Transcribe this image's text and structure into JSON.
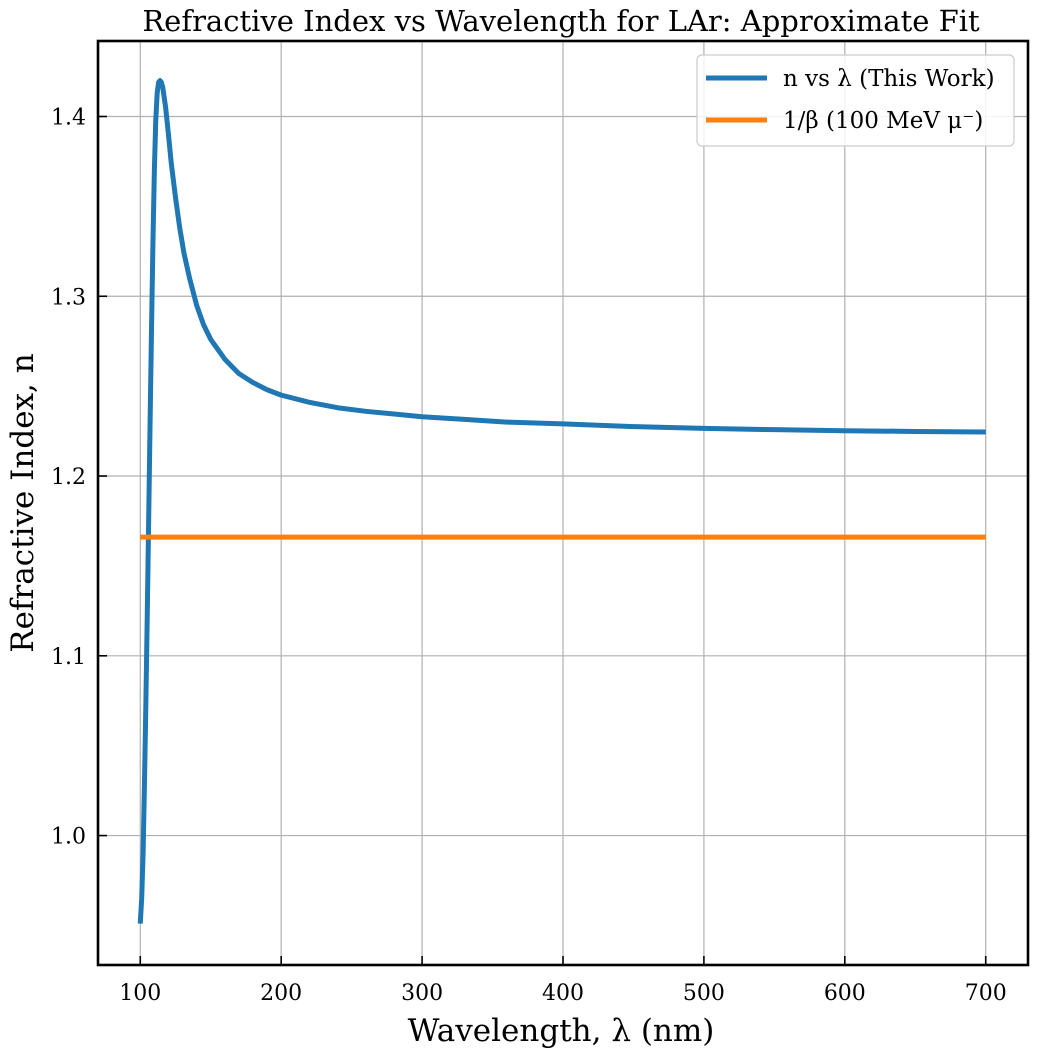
{
  "chart_data": {
    "type": "line",
    "title": "Refractive Index vs Wavelength for LAr: Approximate Fit",
    "xlabel": "Wavelength, λ (nm)",
    "ylabel": "Refractive Index, n",
    "xlim": [
      70,
      730
    ],
    "ylim": [
      0.928,
      1.442
    ],
    "xticks": [
      100,
      200,
      300,
      400,
      500,
      600,
      700
    ],
    "xtick_labels": [
      "100",
      "200",
      "300",
      "400",
      "500",
      "600",
      "700"
    ],
    "yticks": [
      1.0,
      1.1,
      1.2,
      1.3,
      1.4
    ],
    "ytick_labels": [
      "1.0",
      "1.1",
      "1.2",
      "1.3",
      "1.4"
    ],
    "grid": true,
    "legend_position": "top-right",
    "series": [
      {
        "name": "n vs λ (This Work)",
        "color": "#1f77b4",
        "x": [
          100,
          101,
          102,
          103,
          104,
          105,
          106,
          107,
          108,
          109,
          110,
          111,
          112,
          113,
          114,
          115,
          116,
          118,
          120,
          122,
          125,
          128,
          131,
          135,
          140,
          145,
          150,
          160,
          170,
          180,
          190,
          200,
          220,
          240,
          260,
          280,
          300,
          330,
          360,
          400,
          450,
          500,
          550,
          600,
          650,
          700
        ],
        "y": [
          0.951,
          0.965,
          0.99,
          1.03,
          1.075,
          1.125,
          1.178,
          1.232,
          1.283,
          1.33,
          1.37,
          1.398,
          1.413,
          1.419,
          1.42,
          1.419,
          1.416,
          1.405,
          1.39,
          1.374,
          1.355,
          1.338,
          1.324,
          1.31,
          1.295,
          1.284,
          1.276,
          1.265,
          1.257,
          1.252,
          1.248,
          1.245,
          1.241,
          1.238,
          1.236,
          1.2345,
          1.233,
          1.2315,
          1.23,
          1.229,
          1.2275,
          1.2265,
          1.2258,
          1.2252,
          1.2248,
          1.2245
        ]
      },
      {
        "name": "1/β (100 MeV μ⁻)",
        "color": "#ff7f0e",
        "x": [
          100,
          700
        ],
        "y": [
          1.166,
          1.166
        ]
      }
    ]
  }
}
